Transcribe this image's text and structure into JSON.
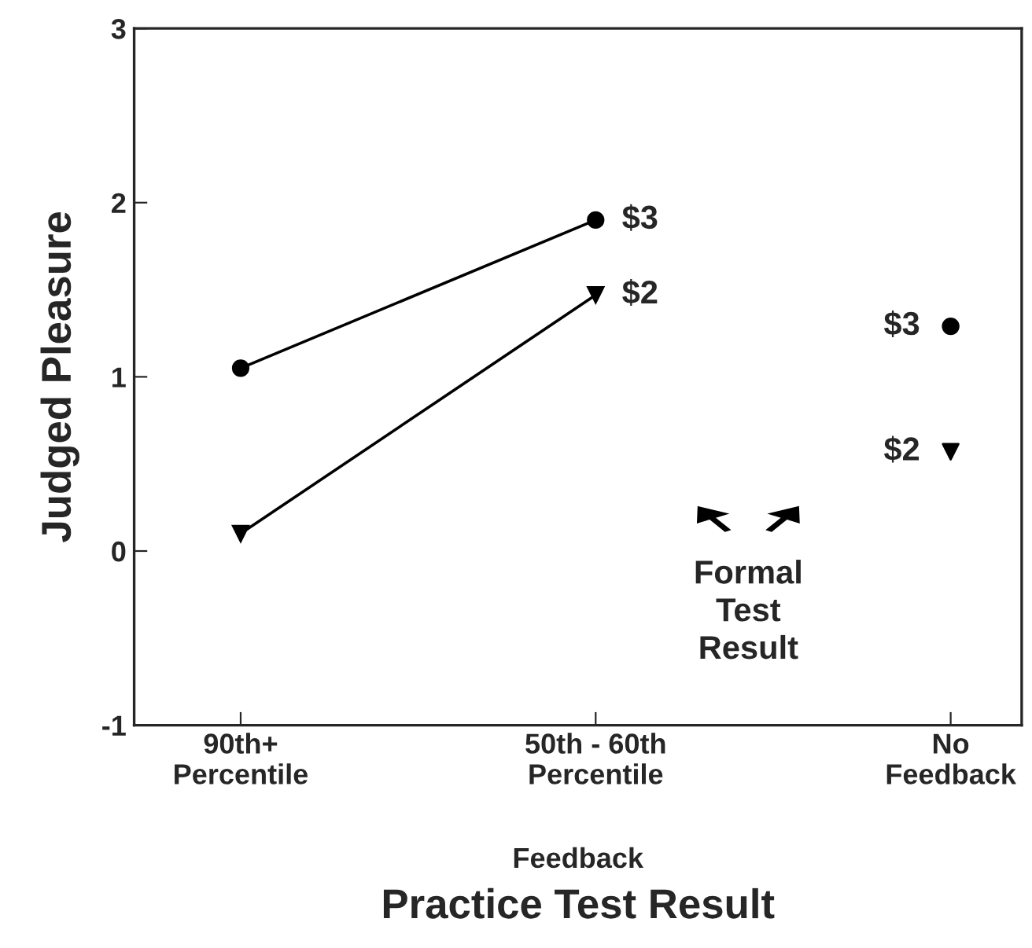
{
  "chart_data": {
    "type": "line",
    "xlabel": "Practice Test Result",
    "ylabel": "Judged Pleasure",
    "categories": [
      "90th+\nPercentile",
      "50th - 60th\nPercentile",
      "No\nFeedback"
    ],
    "series": [
      {
        "name": "$3",
        "color": "#000000",
        "values": [
          1.05,
          1.9,
          null
        ],
        "marker": "circle"
      },
      {
        "name": "$2",
        "color": "#000000",
        "values": [
          0.1,
          1.47,
          null
        ],
        "marker": "triangle"
      },
      {
        "name": "$3",
        "type": "scatter",
        "color": "#000000",
        "values": [
          null,
          null,
          1.29
        ],
        "marker": "circle"
      },
      {
        "name": "$2",
        "type": "scatter",
        "color": "#000000",
        "values": [
          null,
          null,
          0.57
        ],
        "marker": "triangle"
      }
    ],
    "ylim": [
      -1,
      3
    ],
    "yticks": [
      -1,
      0,
      1,
      2,
      3
    ],
    "grid": false,
    "legend": false,
    "line_style": "solid",
    "annotations": [
      "Feedback",
      "Formal\nTest\nResult"
    ]
  }
}
